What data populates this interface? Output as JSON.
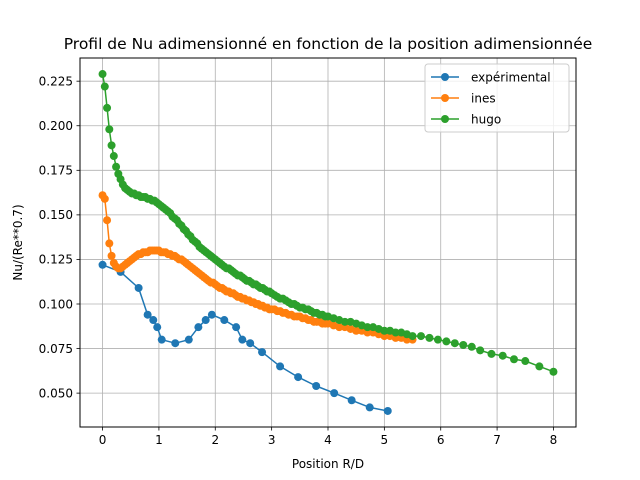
{
  "chart_data": {
    "type": "line",
    "title": "Profil de Nu adimensionné en fonction de la position adimensionnée",
    "xlabel": "Position R/D",
    "ylabel": "Nu/(Re**0.7)",
    "xlim": [
      -0.4,
      8.4
    ],
    "ylim": [
      0.031,
      0.238
    ],
    "xticks": [
      0,
      1,
      2,
      3,
      4,
      5,
      6,
      7,
      8
    ],
    "xtick_labels": [
      "0",
      "1",
      "2",
      "3",
      "4",
      "5",
      "6",
      "7",
      "8"
    ],
    "yticks": [
      0.05,
      0.075,
      0.1,
      0.125,
      0.15,
      0.175,
      0.2,
      0.225
    ],
    "ytick_labels": [
      "0.050",
      "0.075",
      "0.100",
      "0.125",
      "0.150",
      "0.175",
      "0.200",
      "0.225"
    ],
    "grid": true,
    "legend_position": "top-right",
    "series": [
      {
        "name": "expérimental",
        "color": "#1f77b4",
        "x": [
          0.0,
          0.32,
          0.64,
          0.8,
          0.9,
          0.97,
          1.05,
          1.29,
          1.53,
          1.7,
          1.83,
          1.94,
          2.16,
          2.37,
          2.48,
          2.62,
          2.83,
          3.15,
          3.47,
          3.79,
          4.11,
          4.42,
          4.74,
          5.06
        ],
        "y": [
          0.122,
          0.118,
          0.109,
          0.094,
          0.091,
          0.087,
          0.08,
          0.078,
          0.08,
          0.087,
          0.091,
          0.094,
          0.091,
          0.087,
          0.08,
          0.078,
          0.073,
          0.065,
          0.059,
          0.054,
          0.05,
          0.046,
          0.042,
          0.04
        ]
      },
      {
        "name": "ines",
        "color": "#ff7f0e",
        "x": [
          0.0,
          0.04,
          0.08,
          0.12,
          0.16,
          0.2,
          0.24,
          0.28,
          0.32,
          0.36,
          0.4,
          0.44,
          0.48,
          0.52,
          0.56,
          0.6,
          0.64,
          0.68,
          0.72,
          0.76,
          0.8,
          0.84,
          0.88,
          0.92,
          0.96,
          1.0,
          1.04,
          1.08,
          1.12,
          1.16,
          1.2,
          1.24,
          1.28,
          1.32,
          1.36,
          1.4,
          1.44,
          1.48,
          1.52,
          1.56,
          1.6,
          1.64,
          1.68,
          1.72,
          1.76,
          1.8,
          1.84,
          1.88,
          1.92,
          1.96,
          2.0,
          2.04,
          2.08,
          2.12,
          2.16,
          2.2,
          2.24,
          2.28,
          2.32,
          2.36,
          2.4,
          2.44,
          2.48,
          2.52,
          2.56,
          2.6,
          2.64,
          2.68,
          2.72,
          2.76,
          2.8,
          2.84,
          2.88,
          2.92,
          2.96,
          3.0,
          3.05,
          3.1,
          3.15,
          3.2,
          3.25,
          3.3,
          3.35,
          3.4,
          3.45,
          3.5,
          3.55,
          3.6,
          3.65,
          3.7,
          3.75,
          3.8,
          3.85,
          3.9,
          3.95,
          4.0,
          4.1,
          4.2,
          4.3,
          4.4,
          4.5,
          4.6,
          4.7,
          4.8,
          4.9,
          5.0,
          5.1,
          5.2,
          5.3,
          5.4,
          5.5
        ],
        "y": [
          0.161,
          0.159,
          0.147,
          0.134,
          0.127,
          0.123,
          0.121,
          0.12,
          0.12,
          0.121,
          0.122,
          0.123,
          0.124,
          0.125,
          0.126,
          0.127,
          0.128,
          0.128,
          0.129,
          0.129,
          0.129,
          0.13,
          0.13,
          0.13,
          0.13,
          0.13,
          0.129,
          0.129,
          0.129,
          0.128,
          0.128,
          0.127,
          0.127,
          0.126,
          0.125,
          0.125,
          0.124,
          0.123,
          0.122,
          0.121,
          0.12,
          0.119,
          0.118,
          0.117,
          0.116,
          0.115,
          0.114,
          0.113,
          0.112,
          0.112,
          0.111,
          0.11,
          0.109,
          0.109,
          0.108,
          0.107,
          0.107,
          0.106,
          0.106,
          0.105,
          0.104,
          0.104,
          0.103,
          0.103,
          0.102,
          0.102,
          0.101,
          0.101,
          0.1,
          0.1,
          0.099,
          0.099,
          0.098,
          0.098,
          0.097,
          0.097,
          0.097,
          0.096,
          0.096,
          0.095,
          0.095,
          0.094,
          0.094,
          0.093,
          0.093,
          0.093,
          0.092,
          0.092,
          0.091,
          0.091,
          0.09,
          0.09,
          0.09,
          0.089,
          0.089,
          0.089,
          0.088,
          0.087,
          0.087,
          0.086,
          0.085,
          0.085,
          0.084,
          0.084,
          0.083,
          0.082,
          0.082,
          0.081,
          0.081,
          0.08,
          0.08
        ]
      },
      {
        "name": "hugo",
        "color": "#2ca02c",
        "x": [
          0.0,
          0.04,
          0.08,
          0.12,
          0.16,
          0.2,
          0.24,
          0.28,
          0.32,
          0.36,
          0.4,
          0.44,
          0.48,
          0.52,
          0.56,
          0.6,
          0.64,
          0.68,
          0.72,
          0.76,
          0.8,
          0.84,
          0.88,
          0.92,
          0.96,
          1.0,
          1.04,
          1.08,
          1.12,
          1.16,
          1.2,
          1.24,
          1.28,
          1.32,
          1.36,
          1.4,
          1.44,
          1.48,
          1.52,
          1.56,
          1.6,
          1.64,
          1.68,
          1.72,
          1.76,
          1.8,
          1.84,
          1.88,
          1.92,
          1.96,
          2.0,
          2.04,
          2.08,
          2.12,
          2.16,
          2.2,
          2.24,
          2.28,
          2.32,
          2.36,
          2.4,
          2.44,
          2.48,
          2.52,
          2.56,
          2.6,
          2.64,
          2.68,
          2.72,
          2.76,
          2.8,
          2.84,
          2.88,
          2.92,
          2.96,
          3.0,
          3.05,
          3.1,
          3.15,
          3.2,
          3.25,
          3.3,
          3.35,
          3.4,
          3.45,
          3.5,
          3.55,
          3.6,
          3.65,
          3.7,
          3.75,
          3.8,
          3.85,
          3.9,
          3.95,
          4.0,
          4.1,
          4.2,
          4.3,
          4.4,
          4.5,
          4.6,
          4.7,
          4.8,
          4.9,
          5.0,
          5.1,
          5.2,
          5.3,
          5.4,
          5.5,
          5.65,
          5.8,
          5.95,
          6.1,
          6.25,
          6.4,
          6.55,
          6.7,
          6.9,
          7.1,
          7.3,
          7.5,
          7.75,
          8.0
        ],
        "y": [
          0.229,
          0.222,
          0.21,
          0.198,
          0.189,
          0.183,
          0.177,
          0.173,
          0.17,
          0.167,
          0.165,
          0.164,
          0.163,
          0.162,
          0.162,
          0.161,
          0.161,
          0.16,
          0.16,
          0.16,
          0.159,
          0.159,
          0.158,
          0.158,
          0.157,
          0.156,
          0.155,
          0.154,
          0.153,
          0.152,
          0.151,
          0.149,
          0.148,
          0.147,
          0.145,
          0.144,
          0.142,
          0.141,
          0.139,
          0.138,
          0.136,
          0.135,
          0.134,
          0.132,
          0.131,
          0.13,
          0.129,
          0.128,
          0.127,
          0.126,
          0.125,
          0.124,
          0.123,
          0.122,
          0.121,
          0.12,
          0.12,
          0.119,
          0.118,
          0.117,
          0.116,
          0.116,
          0.115,
          0.114,
          0.113,
          0.113,
          0.112,
          0.111,
          0.111,
          0.11,
          0.109,
          0.109,
          0.108,
          0.107,
          0.107,
          0.106,
          0.105,
          0.104,
          0.103,
          0.103,
          0.102,
          0.101,
          0.1,
          0.1,
          0.099,
          0.098,
          0.098,
          0.097,
          0.097,
          0.096,
          0.095,
          0.095,
          0.094,
          0.094,
          0.093,
          0.093,
          0.092,
          0.091,
          0.09,
          0.09,
          0.089,
          0.088,
          0.087,
          0.087,
          0.086,
          0.085,
          0.085,
          0.084,
          0.084,
          0.083,
          0.082,
          0.082,
          0.081,
          0.08,
          0.079,
          0.078,
          0.077,
          0.076,
          0.074,
          0.072,
          0.071,
          0.069,
          0.068,
          0.065,
          0.062
        ]
      }
    ]
  }
}
